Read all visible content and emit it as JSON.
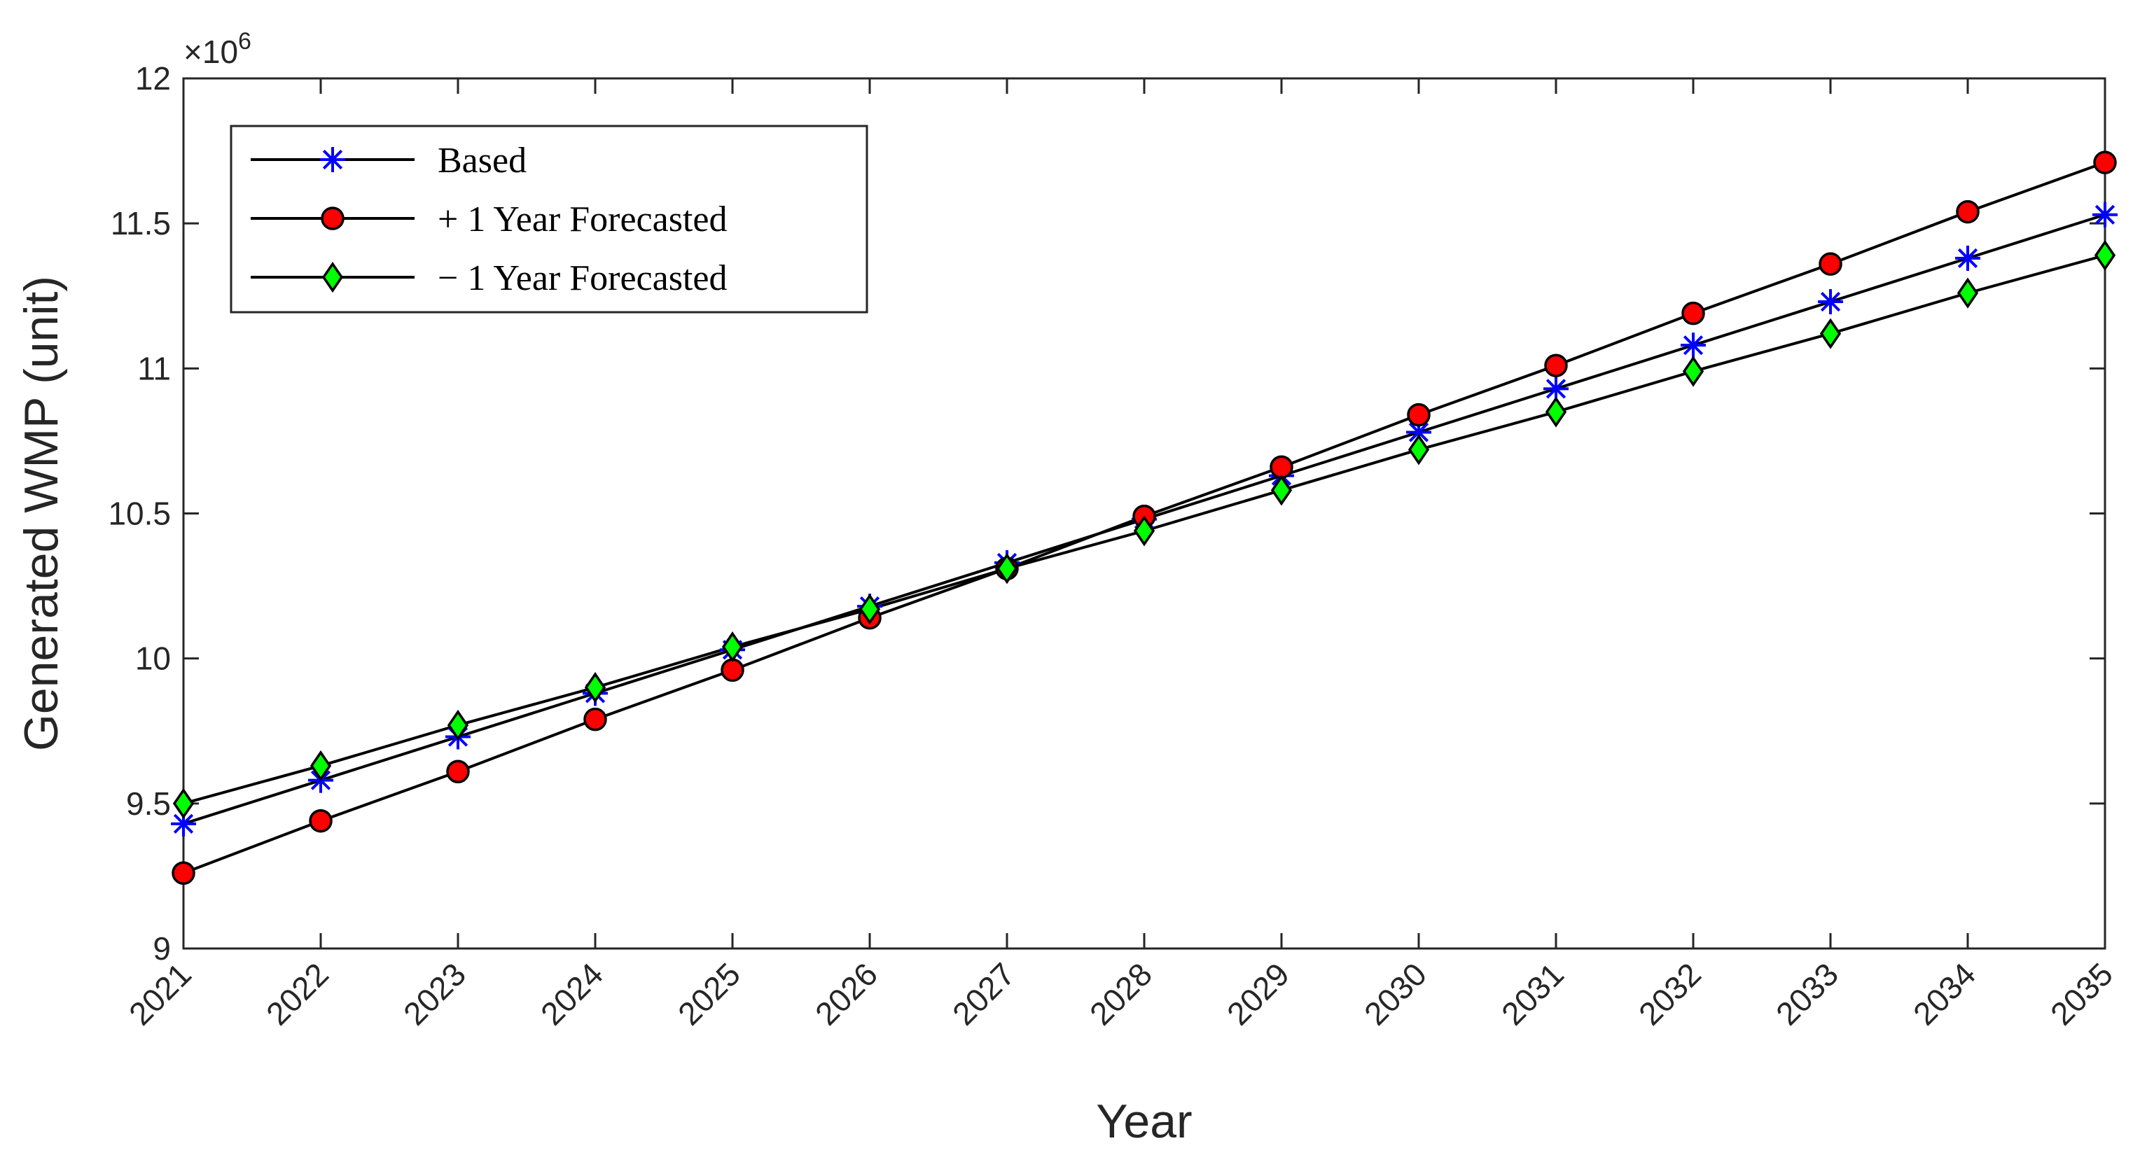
{
  "chart_data": {
    "type": "line",
    "title": "",
    "xlabel": "Year",
    "ylabel": "Generated WMP (unit)",
    "y_multiplier_label": "×10",
    "y_multiplier_exponent": "6",
    "x": [
      2021,
      2022,
      2023,
      2024,
      2025,
      2026,
      2027,
      2028,
      2029,
      2030,
      2031,
      2032,
      2033,
      2034,
      2035
    ],
    "x_tick_labels": [
      "2021",
      "2022",
      "2023",
      "2024",
      "2025",
      "2026",
      "2027",
      "2028",
      "2029",
      "2030",
      "2031",
      "2032",
      "2033",
      "2034",
      "2035"
    ],
    "xlim": [
      2021,
      2035
    ],
    "ylim": [
      9,
      12
    ],
    "y_ticks": [
      9,
      9.5,
      10,
      10.5,
      11,
      11.5,
      12
    ],
    "y_tick_labels": [
      "9",
      "9.5",
      "10",
      "10.5",
      "11",
      "11.5",
      "12"
    ],
    "grid": false,
    "legend_position": "top-left",
    "series": [
      {
        "name": "Based",
        "marker": "asterisk",
        "marker_color": "#0000ff",
        "line_color": "#000000",
        "values": [
          9.43,
          9.58,
          9.73,
          9.88,
          10.03,
          10.18,
          10.33,
          10.48,
          10.63,
          10.78,
          10.93,
          11.08,
          11.23,
          11.38,
          11.53
        ]
      },
      {
        "name": "+ 1 Year Forecasted",
        "marker": "circle",
        "marker_color": "#ff0000",
        "line_color": "#000000",
        "values": [
          9.26,
          9.44,
          9.61,
          9.79,
          9.96,
          10.14,
          10.31,
          10.49,
          10.66,
          10.84,
          11.01,
          11.19,
          11.36,
          11.54,
          11.71
        ]
      },
      {
        "name": "− 1 Year Forecasted",
        "marker": "diamond",
        "marker_color": "#00ff00",
        "line_color": "#000000",
        "values": [
          9.5,
          9.63,
          9.77,
          9.9,
          10.04,
          10.17,
          10.31,
          10.44,
          10.58,
          10.72,
          10.85,
          10.99,
          11.12,
          11.26,
          11.39
        ]
      }
    ]
  }
}
